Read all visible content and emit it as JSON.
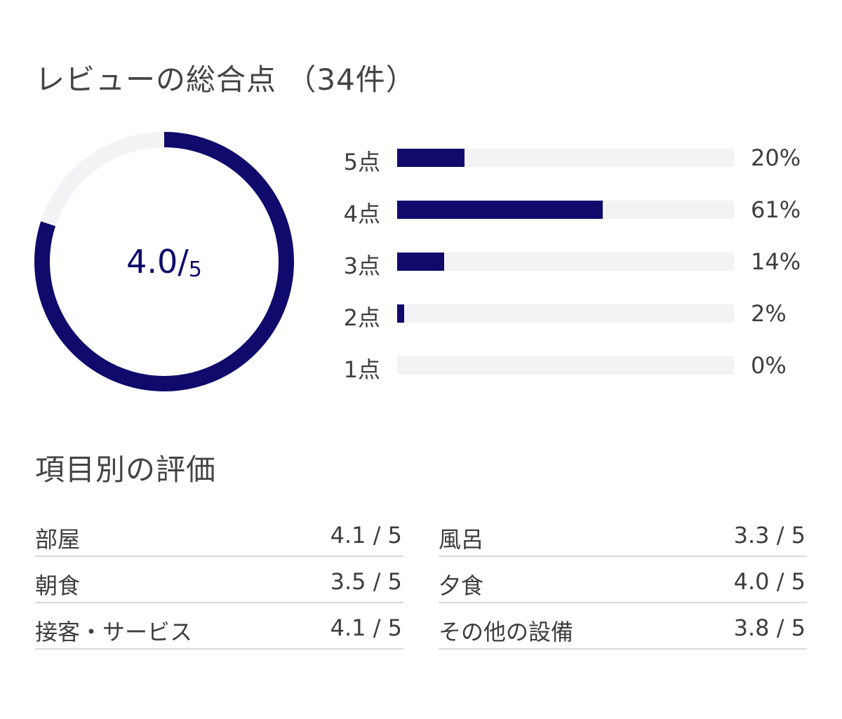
{
  "overall": {
    "title": "レビューの総合点 （34件）",
    "score": "4.0",
    "score_sep": "/",
    "score_max": "5",
    "score_value": 4.0,
    "score_out_of": 5
  },
  "distribution": [
    {
      "label": "5点",
      "pct_text": "20%",
      "pct": 20
    },
    {
      "label": "4点",
      "pct_text": "61%",
      "pct": 61
    },
    {
      "label": "3点",
      "pct_text": "14%",
      "pct": 14
    },
    {
      "label": "2点",
      "pct_text": "2%",
      "pct": 2
    },
    {
      "label": "1点",
      "pct_text": "0%",
      "pct": 0
    }
  ],
  "categories": {
    "title": "項目別の評価",
    "left": [
      {
        "name": "部屋",
        "score": "4.1 / 5"
      },
      {
        "name": "朝食",
        "score": "3.5 / 5"
      },
      {
        "name": "接客・サービス",
        "score": "4.1 / 5"
      }
    ],
    "right": [
      {
        "name": "風呂",
        "score": "3.3 / 5"
      },
      {
        "name": "夕食",
        "score": "4.0 / 5"
      },
      {
        "name": "その他の設備",
        "score": "3.8 / 5"
      }
    ]
  },
  "colors": {
    "accent": "#0f0a6b",
    "track": "#f3f3f5",
    "divider": "#d9d9d9"
  }
}
